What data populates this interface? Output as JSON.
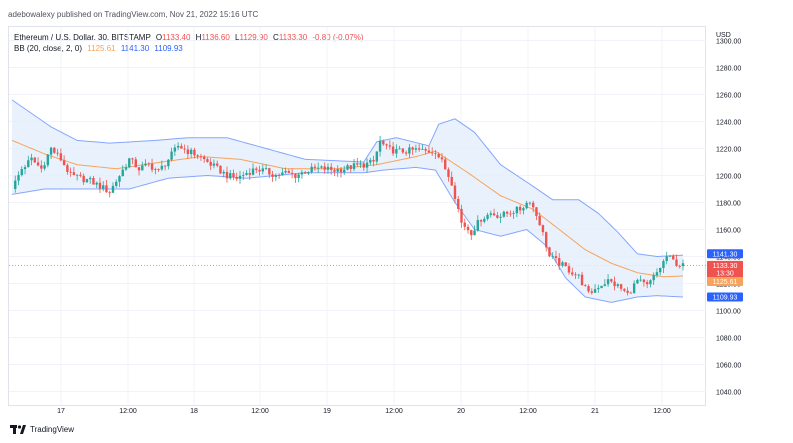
{
  "header": {
    "published_text": "adebowalexy published on TradingView.com, Nov 21, 2022 15:16 UTC"
  },
  "legend": {
    "symbol": "Ethereum / U.S. Dollar, 30, BITSTAMP",
    "o_label": "O",
    "o_value": "1133.40",
    "h_label": "H",
    "h_value": "1136.60",
    "l_label": "L",
    "l_value": "1129.90",
    "c_label": "C",
    "c_value": "1133.30",
    "change": "-0.80 (-0.07%)",
    "bb_label": "BB (20, close, 2, 0)",
    "bb_basis": "1125.61",
    "bb_upper": "1141.30",
    "bb_lower": "1109.93"
  },
  "axis": {
    "currency": "USD"
  },
  "price_tags": {
    "upper": "1141.30",
    "last": "1133.30",
    "countdown": "13:30",
    "basis": "1125.61",
    "lower": "1109.93"
  },
  "footer": {
    "brand": "TradingView"
  },
  "colors": {
    "up": "#26a69a",
    "down": "#ef5350",
    "bb_band": "#2962ff",
    "bb_basis": "#f7a35c",
    "bb_fill": "#e3effb"
  },
  "chart_data": {
    "type": "candlestick",
    "title": "Ethereum / U.S. Dollar, 30, BITSTAMP",
    "ylabel": "USD",
    "ylim": [
      1030,
      1310
    ],
    "y_ticks": [
      "1300.00",
      "1280.00",
      "1260.00",
      "1240.00",
      "1220.00",
      "1200.00",
      "1180.00",
      "1160.00",
      "1140.00",
      "1120.00",
      "1100.00",
      "1080.00",
      "1060.00",
      "1040.00"
    ],
    "x_ticks": [
      "17",
      "12:00",
      "18",
      "12:00",
      "19",
      "12:00",
      "20",
      "12:00",
      "21",
      "12:00"
    ],
    "last_price": 1133.3,
    "indicator": "BB (20, close, 2, 0)",
    "close_path": [
      [
        0,
        1190
      ],
      [
        3,
        1205
      ],
      [
        6,
        1212
      ],
      [
        9,
        1205
      ],
      [
        12,
        1220
      ],
      [
        15,
        1212
      ],
      [
        18,
        1200
      ],
      [
        21,
        1198
      ],
      [
        24,
        1196
      ],
      [
        27,
        1192
      ],
      [
        30,
        1188
      ],
      [
        33,
        1200
      ],
      [
        36,
        1212
      ],
      [
        39,
        1205
      ],
      [
        42,
        1208
      ],
      [
        45,
        1203
      ],
      [
        48,
        1212
      ],
      [
        51,
        1222
      ],
      [
        54,
        1218
      ],
      [
        57,
        1215
      ],
      [
        60,
        1210
      ],
      [
        63,
        1205
      ],
      [
        66,
        1200
      ],
      [
        69,
        1198
      ],
      [
        72,
        1202
      ],
      [
        75,
        1205
      ],
      [
        78,
        1203
      ],
      [
        81,
        1200
      ],
      [
        84,
        1202
      ],
      [
        87,
        1200
      ],
      [
        90,
        1203
      ],
      [
        93,
        1205
      ],
      [
        96,
        1205
      ],
      [
        99,
        1204
      ],
      [
        102,
        1205
      ],
      [
        105,
        1207
      ],
      [
        108,
        1208
      ],
      [
        111,
        1210
      ],
      [
        113,
        1225
      ],
      [
        115,
        1220
      ],
      [
        118,
        1218
      ],
      [
        121,
        1218
      ],
      [
        124,
        1219
      ],
      [
        127,
        1218
      ],
      [
        130,
        1218
      ],
      [
        132,
        1210
      ],
      [
        135,
        1195
      ],
      [
        138,
        1165
      ],
      [
        141,
        1158
      ],
      [
        144,
        1168
      ],
      [
        147,
        1172
      ],
      [
        150,
        1170
      ],
      [
        153,
        1173
      ],
      [
        156,
        1175
      ],
      [
        159,
        1182
      ],
      [
        162,
        1165
      ],
      [
        165,
        1140
      ],
      [
        168,
        1135
      ],
      [
        171,
        1130
      ],
      [
        174,
        1125
      ],
      [
        177,
        1112
      ],
      [
        180,
        1118
      ],
      [
        183,
        1122
      ],
      [
        186,
        1118
      ],
      [
        189,
        1112
      ],
      [
        192,
        1122
      ],
      [
        195,
        1118
      ],
      [
        198,
        1128
      ],
      [
        201,
        1140
      ],
      [
        204,
        1135
      ],
      [
        206,
        1133
      ]
    ],
    "bb_upper_path": [
      [
        0,
        1256
      ],
      [
        12,
        1236
      ],
      [
        20,
        1226
      ],
      [
        30,
        1224
      ],
      [
        44,
        1226
      ],
      [
        54,
        1228
      ],
      [
        66,
        1228
      ],
      [
        75,
        1222
      ],
      [
        90,
        1212
      ],
      [
        108,
        1210
      ],
      [
        112,
        1225
      ],
      [
        118,
        1228
      ],
      [
        128,
        1222
      ],
      [
        131,
        1238
      ],
      [
        136,
        1242
      ],
      [
        142,
        1232
      ],
      [
        150,
        1208
      ],
      [
        160,
        1192
      ],
      [
        166,
        1182
      ],
      [
        174,
        1182
      ],
      [
        180,
        1172
      ],
      [
        186,
        1158
      ],
      [
        192,
        1142
      ],
      [
        198,
        1140
      ],
      [
        206,
        1141
      ]
    ],
    "bb_lower_path": [
      [
        0,
        1186
      ],
      [
        10,
        1190
      ],
      [
        24,
        1190
      ],
      [
        36,
        1190
      ],
      [
        48,
        1198
      ],
      [
        60,
        1200
      ],
      [
        72,
        1198
      ],
      [
        90,
        1202
      ],
      [
        108,
        1202
      ],
      [
        114,
        1204
      ],
      [
        124,
        1206
      ],
      [
        130,
        1204
      ],
      [
        136,
        1180
      ],
      [
        142,
        1160
      ],
      [
        150,
        1155
      ],
      [
        158,
        1160
      ],
      [
        164,
        1148
      ],
      [
        170,
        1124
      ],
      [
        176,
        1110
      ],
      [
        184,
        1106
      ],
      [
        192,
        1110
      ],
      [
        198,
        1111
      ],
      [
        206,
        1110
      ]
    ],
    "bb_basis_path": [
      [
        0,
        1226
      ],
      [
        10,
        1216
      ],
      [
        20,
        1208
      ],
      [
        32,
        1205
      ],
      [
        46,
        1210
      ],
      [
        58,
        1214
      ],
      [
        70,
        1212
      ],
      [
        84,
        1205
      ],
      [
        100,
        1205
      ],
      [
        112,
        1208
      ],
      [
        124,
        1214
      ],
      [
        130,
        1218
      ],
      [
        140,
        1202
      ],
      [
        150,
        1185
      ],
      [
        160,
        1175
      ],
      [
        168,
        1160
      ],
      [
        176,
        1145
      ],
      [
        184,
        1135
      ],
      [
        192,
        1128
      ],
      [
        200,
        1125
      ],
      [
        206,
        1125.6
      ]
    ]
  }
}
